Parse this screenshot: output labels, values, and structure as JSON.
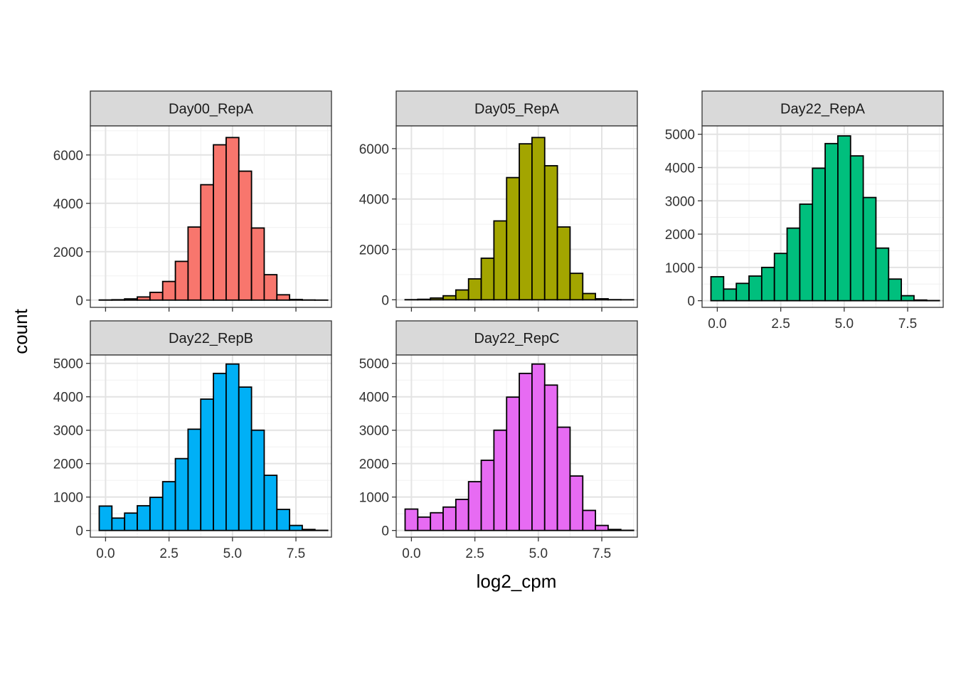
{
  "chart_data": {
    "type": "bar",
    "xlabel": "log2_cpm",
    "ylabel": "count",
    "bin_width": 0.5,
    "bin_centers": [
      0,
      0.5,
      1,
      1.5,
      2,
      2.5,
      3,
      3.5,
      4,
      4.5,
      5,
      5.5,
      6,
      6.5,
      7,
      7.5,
      8,
      8.5
    ],
    "x_ticks": [
      0,
      2.5,
      5,
      7.5
    ],
    "x_tick_labels": [
      "0.0",
      "2.5",
      "5.0",
      "7.5"
    ],
    "xlim": [
      -0.6,
      8.9
    ],
    "grid": true,
    "legend": "none",
    "panels": [
      {
        "name": "Day00_RepA",
        "color": "#F8766D",
        "ylim": [
          -300,
          7200
        ],
        "y_ticks": [
          0,
          2000,
          4000,
          6000
        ],
        "values": [
          5,
          15,
          50,
          130,
          320,
          770,
          1600,
          3020,
          4770,
          6420,
          6720,
          5330,
          2980,
          1050,
          220,
          25,
          5,
          0
        ]
      },
      {
        "name": "Day05_RepA",
        "color": "#A3A500",
        "ylim": [
          -300,
          6900
        ],
        "y_ticks": [
          0,
          2000,
          4000,
          6000
        ],
        "values": [
          5,
          20,
          70,
          160,
          390,
          830,
          1650,
          3130,
          4850,
          6190,
          6440,
          5320,
          2890,
          1050,
          250,
          40,
          5,
          0
        ]
      },
      {
        "name": "Day22_RepA",
        "color": "#00BF7D",
        "ylim": [
          -200,
          5250
        ],
        "y_ticks": [
          0,
          1000,
          2000,
          3000,
          4000,
          5000
        ],
        "values": [
          720,
          350,
          520,
          740,
          1000,
          1420,
          2180,
          2900,
          3980,
          4720,
          4950,
          4350,
          3100,
          1580,
          650,
          150,
          20,
          5
        ]
      },
      {
        "name": "Day22_RepB",
        "color": "#00B0F6",
        "ylim": [
          -200,
          5250
        ],
        "y_ticks": [
          0,
          1000,
          2000,
          3000,
          4000,
          5000
        ],
        "values": [
          730,
          370,
          520,
          740,
          990,
          1460,
          2150,
          3030,
          3930,
          4700,
          4980,
          4290,
          3000,
          1650,
          630,
          150,
          30,
          5
        ]
      },
      {
        "name": "Day22_RepC",
        "color": "#E76BF3",
        "ylim": [
          -200,
          5250
        ],
        "y_ticks": [
          0,
          1000,
          2000,
          3000,
          4000,
          5000
        ],
        "values": [
          640,
          400,
          530,
          700,
          930,
          1460,
          2100,
          3000,
          3990,
          4700,
          4980,
          4350,
          3090,
          1630,
          600,
          150,
          30,
          5
        ]
      }
    ]
  }
}
